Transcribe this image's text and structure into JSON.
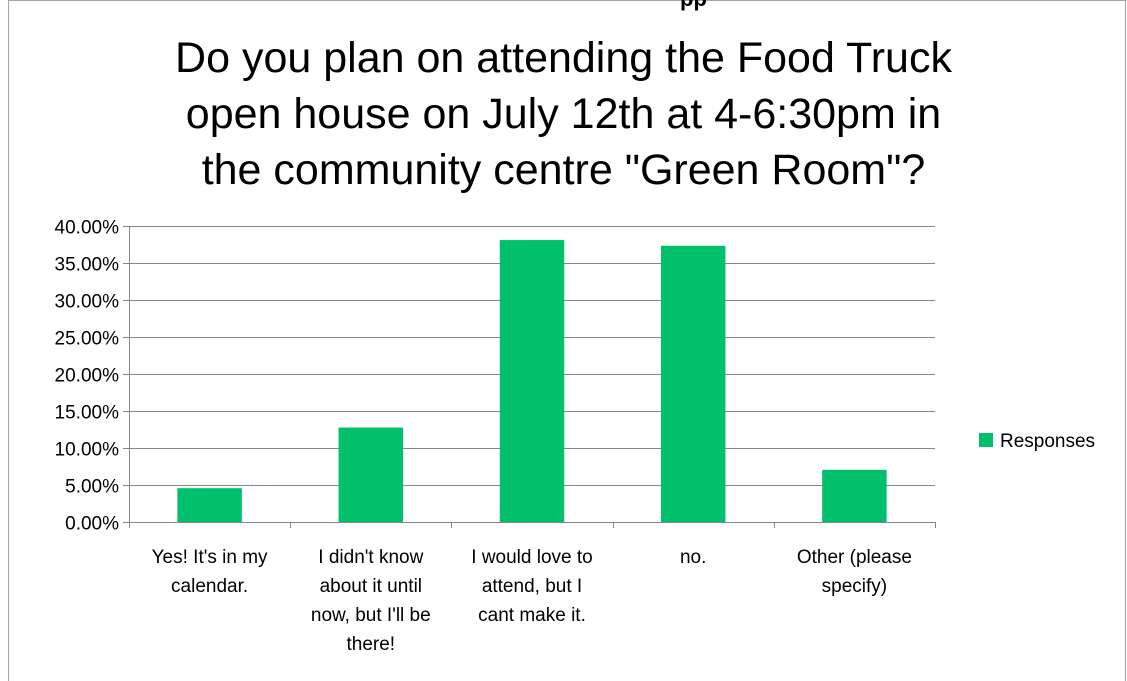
{
  "chart_data": {
    "type": "bar",
    "title_lines": [
      "Do you plan on attending the Food Truck",
      "open house on July 12th at 4-6:30pm in",
      "the community centre \"Green Room\"?"
    ],
    "categories": [
      [
        "Yes! It's in my",
        "calendar."
      ],
      [
        "I didn't know",
        "about it until",
        "now, but I'll be",
        "there!"
      ],
      [
        "I would love to",
        "attend, but I",
        "cant make it."
      ],
      [
        "no."
      ],
      [
        "Other (please",
        "specify)"
      ]
    ],
    "series": [
      {
        "name": "Responses",
        "values": [
          0.0457,
          0.1276,
          0.381,
          0.3733,
          0.0705
        ]
      }
    ],
    "ylim": [
      0,
      0.4
    ],
    "yticks": [
      0,
      0.05,
      0.1,
      0.15,
      0.2,
      0.25,
      0.3,
      0.35,
      0.4
    ],
    "ytick_labels": [
      "0.00%",
      "5.00%",
      "10.00%",
      "15.00%",
      "20.00%",
      "25.00%",
      "30.00%",
      "35.00%",
      "40.00%"
    ],
    "grid": true,
    "legend_position": "right",
    "bar_color": "#00c06b",
    "grid_color": "#868686"
  }
}
